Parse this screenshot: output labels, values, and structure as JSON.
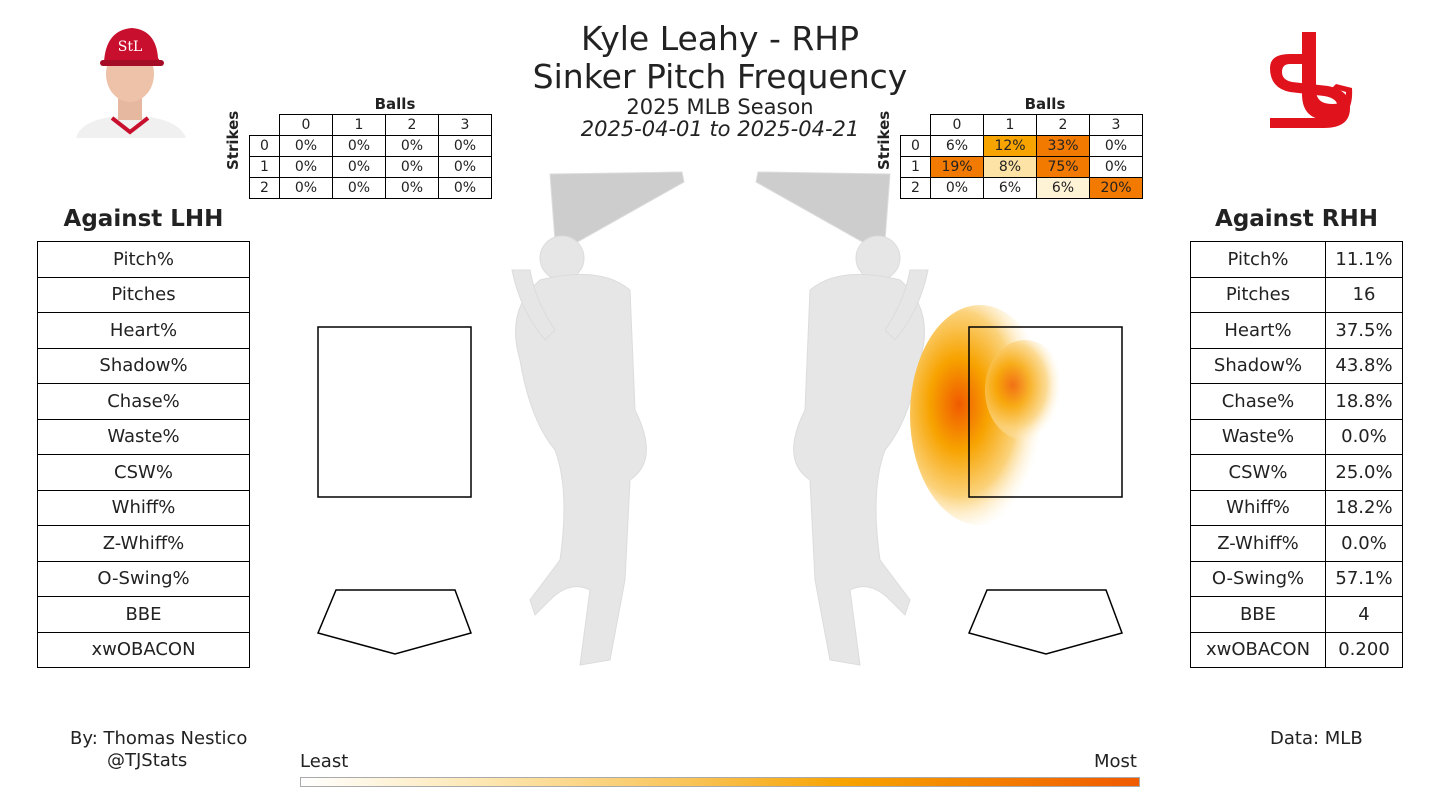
{
  "header": {
    "title": "Kyle Leahy - RHP",
    "subtitle": "Sinker Pitch Frequency",
    "season": "2025 MLB Season",
    "date_range": "2025-04-01 to 2025-04-21"
  },
  "left_panel": {
    "title": "Against LHH",
    "stats": [
      {
        "label": "Pitch%",
        "value": ""
      },
      {
        "label": "Pitches",
        "value": ""
      },
      {
        "label": "Heart%",
        "value": ""
      },
      {
        "label": "Shadow%",
        "value": ""
      },
      {
        "label": "Chase%",
        "value": ""
      },
      {
        "label": "Waste%",
        "value": ""
      },
      {
        "label": "CSW%",
        "value": ""
      },
      {
        "label": "Whiff%",
        "value": ""
      },
      {
        "label": "Z-Whiff%",
        "value": ""
      },
      {
        "label": "O-Swing%",
        "value": ""
      },
      {
        "label": "BBE",
        "value": ""
      },
      {
        "label": "xwOBACON",
        "value": ""
      }
    ]
  },
  "right_panel": {
    "title": "Against RHH",
    "stats": [
      {
        "label": "Pitch%",
        "value": "11.1%"
      },
      {
        "label": "Pitches",
        "value": "16"
      },
      {
        "label": "Heart%",
        "value": "37.5%"
      },
      {
        "label": "Shadow%",
        "value": "43.8%"
      },
      {
        "label": "Chase%",
        "value": "18.8%"
      },
      {
        "label": "Waste%",
        "value": "0.0%"
      },
      {
        "label": "CSW%",
        "value": "25.0%"
      },
      {
        "label": "Whiff%",
        "value": "18.2%"
      },
      {
        "label": "Z-Whiff%",
        "value": "0.0%"
      },
      {
        "label": "O-Swing%",
        "value": "57.1%"
      },
      {
        "label": "BBE",
        "value": "4"
      },
      {
        "label": "xwOBACON",
        "value": "0.200"
      }
    ]
  },
  "count_grids": {
    "balls_label": "Balls",
    "strikes_label": "Strikes",
    "balls": [
      "0",
      "1",
      "2",
      "3"
    ],
    "strikes": [
      "0",
      "1",
      "2"
    ],
    "lhh": [
      [
        "0%",
        "0%",
        "0%",
        "0%"
      ],
      [
        "0%",
        "0%",
        "0%",
        "0%"
      ],
      [
        "0%",
        "0%",
        "0%",
        "0%"
      ]
    ],
    "rhh": [
      [
        "6%",
        "12%",
        "33%",
        "0%"
      ],
      [
        "19%",
        "8%",
        "75%",
        "0%"
      ],
      [
        "0%",
        "6%",
        "6%",
        "20%"
      ]
    ],
    "rhh_colors": [
      [
        "#ffffff",
        "#f7a300",
        "#f37a00",
        "#ffffff"
      ],
      [
        "#f37a00",
        "#fde3a6",
        "#f37a00",
        "#ffffff"
      ],
      [
        "#ffffff",
        "#ffffff",
        "#fff3d6",
        "#f37a00"
      ]
    ]
  },
  "footer": {
    "author": "By: Thomas Nestico",
    "handle": "@TJStats",
    "source": "Data: MLB",
    "legend_least": "Least",
    "legend_most": "Most"
  },
  "chart_data": {
    "type": "heatmap",
    "title": "Sinker Pitch Frequency",
    "panels": [
      "Against LHH",
      "Against RHH"
    ],
    "count_frequency_rhh": {
      "strikes": [
        0,
        1,
        2
      ],
      "balls": [
        0,
        1,
        2,
        3
      ],
      "values_pct": [
        [
          6,
          12,
          33,
          0
        ],
        [
          19,
          8,
          75,
          0
        ],
        [
          0,
          6,
          6,
          20
        ]
      ]
    },
    "count_frequency_lhh": {
      "strikes": [
        0,
        1,
        2
      ],
      "balls": [
        0,
        1,
        2,
        3
      ],
      "values_pct": [
        [
          0,
          0,
          0,
          0
        ],
        [
          0,
          0,
          0,
          0
        ],
        [
          0,
          0,
          0,
          0
        ]
      ]
    },
    "legend": [
      "Least",
      "Most"
    ],
    "colors": {
      "low": "#ffffff",
      "mid": "#f7a300",
      "high": "#f05a00"
    }
  }
}
